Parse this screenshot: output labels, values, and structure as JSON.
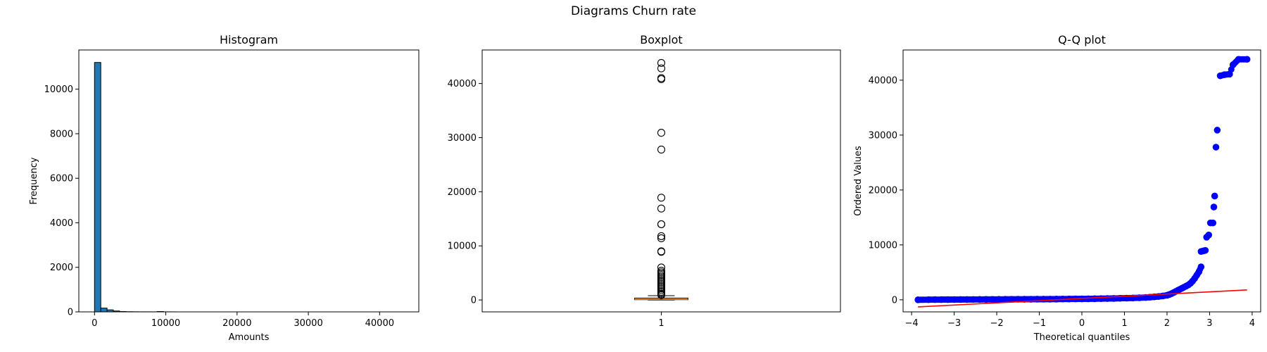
{
  "figure": {
    "suptitle": "Diagrams Churn rate"
  },
  "chart_data": [
    {
      "type": "bar",
      "title": "Histogram",
      "xlabel": "Amounts",
      "ylabel": "Frequency",
      "xlim": [
        -2200,
        45500
      ],
      "ylim": [
        0,
        11760
      ],
      "xticks": [
        "0",
        "10000",
        "20000",
        "30000",
        "40000"
      ],
      "xtick_values": [
        0,
        10000,
        20000,
        30000,
        40000
      ],
      "yticks": [
        "0",
        "2000",
        "4000",
        "6000",
        "8000",
        "10000"
      ],
      "ytick_values": [
        0,
        2000,
        4000,
        6000,
        8000,
        10000
      ],
      "bin_edges": [
        0,
        880,
        1760,
        2640,
        3520,
        4400,
        5280,
        6160,
        7040,
        7920,
        8800,
        9680,
        10560,
        11440
      ],
      "values": [
        11200,
        170,
        90,
        40,
        15,
        8,
        5,
        3,
        3,
        2,
        15,
        3,
        2
      ],
      "bar_color": "#1f77b4",
      "edge_color": "#000000",
      "grid": false
    },
    {
      "type": "scatter",
      "subtype": "boxplot",
      "title": "Boxplot",
      "xticks": [
        "1"
      ],
      "xtick_values": [
        1
      ],
      "yticks": [
        "0",
        "10000",
        "20000",
        "30000",
        "40000"
      ],
      "ytick_values": [
        0,
        10000,
        20000,
        30000,
        40000
      ],
      "xlim": [
        0.5,
        1.5
      ],
      "ylim": [
        -2200,
        46200
      ],
      "box": {
        "q1": 50,
        "median": 150,
        "q3": 350,
        "whisker_low": 0,
        "whisker_high": 800
      },
      "outliers": [
        43800,
        42800,
        41000,
        40800,
        30900,
        27800,
        18900,
        16900,
        14000,
        14000,
        11800,
        11400,
        9000,
        8900,
        6000,
        5400,
        5100,
        4800,
        4500,
        4200,
        3900,
        3600,
        3300,
        3000,
        2700,
        2400,
        2100,
        1800,
        1500,
        1200,
        1000,
        900
      ],
      "median_color": "#ff7f0e",
      "grid": false
    },
    {
      "type": "scatter",
      "subtype": "qq",
      "title": "Q-Q plot",
      "xlabel": "Theoretical quantiles",
      "ylabel": "Ordered Values",
      "xlim": [
        -4.2,
        4.2
      ],
      "ylim": [
        -2200,
        45500
      ],
      "xticks": [
        "−4",
        "−3",
        "−2",
        "−1",
        "0",
        "1",
        "2",
        "3",
        "4"
      ],
      "xtick_values": [
        -4,
        -3,
        -2,
        -1,
        0,
        1,
        2,
        3,
        4
      ],
      "yticks": [
        "0",
        "10000",
        "20000",
        "30000",
        "40000"
      ],
      "ytick_values": [
        0,
        10000,
        20000,
        30000,
        40000
      ],
      "points": [
        [
          -3.85,
          0
        ],
        [
          -3.6,
          20
        ],
        [
          -3.45,
          30
        ],
        [
          -3.3,
          35
        ],
        [
          -3.15,
          40
        ],
        [
          -3.0,
          45
        ],
        [
          -2.85,
          50
        ],
        [
          -2.7,
          55
        ],
        [
          -2.55,
          60
        ],
        [
          -2.4,
          65
        ],
        [
          -2.25,
          70
        ],
        [
          -2.1,
          75
        ],
        [
          -1.95,
          80
        ],
        [
          -1.8,
          85
        ],
        [
          -1.65,
          90
        ],
        [
          -1.5,
          95
        ],
        [
          -1.35,
          100
        ],
        [
          -1.2,
          105
        ],
        [
          -1.05,
          110
        ],
        [
          -0.9,
          115
        ],
        [
          -0.75,
          120
        ],
        [
          -0.6,
          130
        ],
        [
          -0.45,
          140
        ],
        [
          -0.3,
          150
        ],
        [
          -0.15,
          160
        ],
        [
          0.0,
          170
        ],
        [
          0.15,
          180
        ],
        [
          0.3,
          195
        ],
        [
          0.45,
          210
        ],
        [
          0.6,
          230
        ],
        [
          0.75,
          250
        ],
        [
          0.9,
          275
        ],
        [
          1.05,
          300
        ],
        [
          1.2,
          330
        ],
        [
          1.35,
          370
        ],
        [
          1.5,
          420
        ],
        [
          1.6,
          470
        ],
        [
          1.7,
          530
        ],
        [
          1.8,
          600
        ],
        [
          1.9,
          700
        ],
        [
          2.0,
          820
        ],
        [
          2.05,
          950
        ],
        [
          2.1,
          1100
        ],
        [
          2.15,
          1300
        ],
        [
          2.2,
          1500
        ],
        [
          2.25,
          1700
        ],
        [
          2.3,
          1900
        ],
        [
          2.35,
          2100
        ],
        [
          2.4,
          2300
        ],
        [
          2.45,
          2500
        ],
        [
          2.5,
          2700
        ],
        [
          2.55,
          3000
        ],
        [
          2.6,
          3400
        ],
        [
          2.65,
          3900
        ],
        [
          2.7,
          4500
        ],
        [
          2.75,
          5100
        ],
        [
          2.8,
          6000
        ],
        [
          2.8,
          8800
        ],
        [
          2.85,
          8900
        ],
        [
          2.9,
          9000
        ],
        [
          2.93,
          11400
        ],
        [
          2.98,
          11800
        ],
        [
          3.02,
          14000
        ],
        [
          3.08,
          14000
        ],
        [
          3.1,
          16900
        ],
        [
          3.12,
          18900
        ],
        [
          3.15,
          27800
        ],
        [
          3.18,
          30900
        ],
        [
          3.25,
          40800
        ],
        [
          3.35,
          41000
        ],
        [
          3.47,
          41100
        ],
        [
          3.55,
          42800
        ],
        [
          3.68,
          43800
        ],
        [
          3.88,
          43800
        ]
      ],
      "fit_line": [
        [
          -3.85,
          -1300
        ],
        [
          3.88,
          1800
        ]
      ],
      "point_color": "#0000ff",
      "line_color": "#ff0000",
      "grid": false
    }
  ]
}
